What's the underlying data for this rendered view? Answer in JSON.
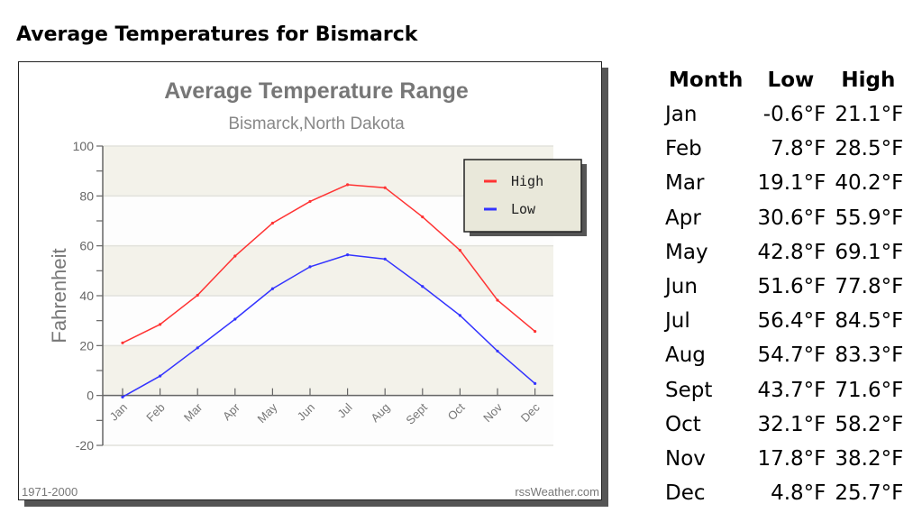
{
  "page_title": "Average Temperatures for Bismarck",
  "chart_data": {
    "type": "line",
    "title": "Average Temperature Range",
    "subtitle": "Bismarck,North Dakota",
    "xlabel": "",
    "ylabel": "Fahrenheit",
    "ylim": [
      -20,
      100
    ],
    "yticks": [
      "100",
      "80",
      "60",
      "40",
      "20",
      "0",
      "-20"
    ],
    "categories": [
      "Jan",
      "Feb",
      "Mar",
      "Apr",
      "May",
      "Jun",
      "Jul",
      "Aug",
      "Sept",
      "Oct",
      "Nov",
      "Dec"
    ],
    "series": [
      {
        "name": "High",
        "color": "#ff3333",
        "values": [
          21.1,
          28.5,
          40.2,
          55.9,
          69.1,
          77.8,
          84.5,
          83.3,
          71.6,
          58.2,
          38.2,
          25.7
        ]
      },
      {
        "name": "Low",
        "color": "#3333ff",
        "values": [
          -0.6,
          7.8,
          19.1,
          30.6,
          42.8,
          51.6,
          56.4,
          54.7,
          43.7,
          32.1,
          17.8,
          4.8
        ]
      }
    ],
    "legend_position": "top-right",
    "footer_left": "1971-2000",
    "footer_right": "rssWeather.com",
    "grid": true
  },
  "table": {
    "headers": [
      "Month",
      "Low",
      "High"
    ],
    "rows": [
      [
        "Jan",
        "-0.6°F",
        "21.1°F"
      ],
      [
        "Feb",
        "7.8°F",
        "28.5°F"
      ],
      [
        "Mar",
        "19.1°F",
        "40.2°F"
      ],
      [
        "Apr",
        "30.6°F",
        "55.9°F"
      ],
      [
        "May",
        "42.8°F",
        "69.1°F"
      ],
      [
        "Jun",
        "51.6°F",
        "77.8°F"
      ],
      [
        "Jul",
        "56.4°F",
        "84.5°F"
      ],
      [
        "Aug",
        "54.7°F",
        "83.3°F"
      ],
      [
        "Sept",
        "43.7°F",
        "71.6°F"
      ],
      [
        "Oct",
        "32.1°F",
        "58.2°F"
      ],
      [
        "Nov",
        "17.8°F",
        "38.2°F"
      ],
      [
        "Dec",
        "4.8°F",
        "25.7°F"
      ]
    ]
  }
}
